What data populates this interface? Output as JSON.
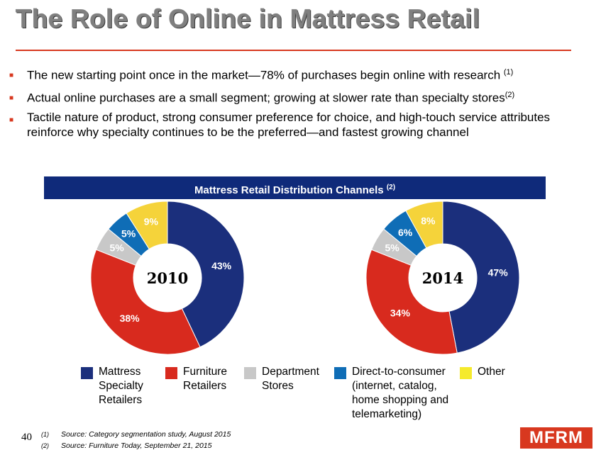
{
  "slide": {
    "title": "The Role of Online in Mattress Retail",
    "bullets": [
      {
        "text": "The new starting point once in the market—78% of purchases begin online with research ",
        "note": "(1)"
      },
      {
        "text": "Actual online purchases are a small segment; growing at slower rate than specialty stores",
        "note": "(2)"
      },
      {
        "text": "Tactile nature of product, strong consumer preference for choice, and high-touch service attributes reinforce why specialty continues to be the preferred—and fastest growing channel",
        "note": ""
      }
    ],
    "chart_banner": "Mattress Retail Distribution Channels ",
    "chart_banner_note": "(2)",
    "legend": [
      {
        "label": "Mattress Specialty Retailers"
      },
      {
        "label": "Furniture Retailers"
      },
      {
        "label": "Department Stores"
      },
      {
        "label": "Direct-to-consumer (internet, catalog, home shopping and telemarketing)"
      },
      {
        "label": "Other"
      }
    ],
    "page_number": "40",
    "footnotes": [
      {
        "mark": "(1)",
        "text": "Source: Category segmentation study, August 2015"
      },
      {
        "mark": "(2)",
        "text": "Source: Furniture Today, September 21, 2015"
      }
    ],
    "logo": "MFRM"
  },
  "colors": {
    "accent": "#d8381f",
    "navy": "#0f2a7a",
    "title_gray": "#7f7f7f"
  },
  "chart_data": [
    {
      "type": "pie",
      "variant": "donut",
      "center_label": "2010",
      "categories": [
        "Mattress Specialty Retailers",
        "Furniture Retailers",
        "Department Stores",
        "Direct-to-consumer",
        "Other"
      ],
      "values": [
        43,
        38,
        5,
        5,
        9
      ],
      "labels": [
        "43%",
        "38%",
        "5%",
        "5%",
        "9%"
      ],
      "colors": [
        "#1b2f7c",
        "#d82a1e",
        "#c8c8c8",
        "#0f6db6",
        "#f5d33a"
      ]
    },
    {
      "type": "pie",
      "variant": "donut",
      "center_label": "2014",
      "categories": [
        "Mattress Specialty Retailers",
        "Furniture Retailers",
        "Department Stores",
        "Direct-to-consumer",
        "Other"
      ],
      "values": [
        47,
        34,
        5,
        6,
        8
      ],
      "labels": [
        "47%",
        "34%",
        "5%",
        "6%",
        "8%"
      ],
      "colors": [
        "#1b2f7c",
        "#d82a1e",
        "#c8c8c8",
        "#0f6db6",
        "#f5d33a"
      ]
    }
  ]
}
